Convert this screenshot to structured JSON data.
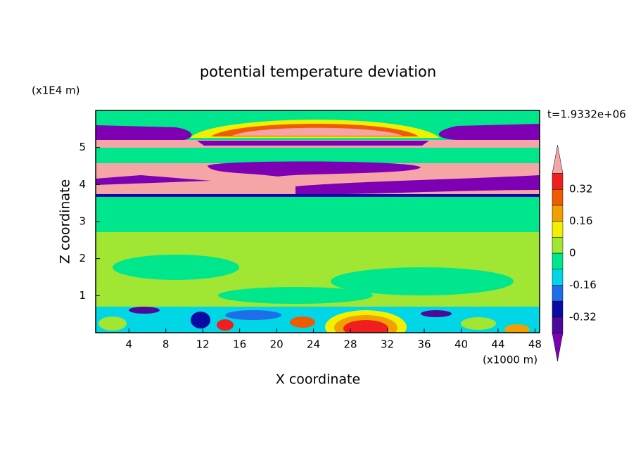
{
  "chart_data": {
    "type": "contour",
    "title": "potential temperature deviation",
    "x_label": "X coordinate",
    "y_label": "Z coordinate",
    "x_unit": "(x1000 m)",
    "y_unit": "(x1E4 m)",
    "annotation": "t=1.9332e+06",
    "xlim": [
      0.4,
      48.5
    ],
    "xticks": [
      4,
      8,
      12,
      16,
      20,
      24,
      28,
      32,
      36,
      40,
      44,
      48
    ],
    "ylim": [
      0,
      6
    ],
    "yticks": [
      1,
      2,
      3,
      4,
      5
    ],
    "levels": [
      -0.4,
      -0.32,
      -0.24,
      -0.16,
      -0.08,
      0,
      0.08,
      0.16,
      0.24,
      0.32,
      0.4
    ],
    "colorbar_ticks": [
      -0.32,
      -0.16,
      0,
      0.16,
      0.32
    ],
    "colors": [
      "#7d00b4",
      "#4b0a9b",
      "#0a0aa5",
      "#1e6eeb",
      "#00d7e6",
      "#00e68c",
      "#a0e632",
      "#f0f000",
      "#f0a000",
      "#f05a00",
      "#f01e1e",
      "#f5a5a5"
    ]
  }
}
